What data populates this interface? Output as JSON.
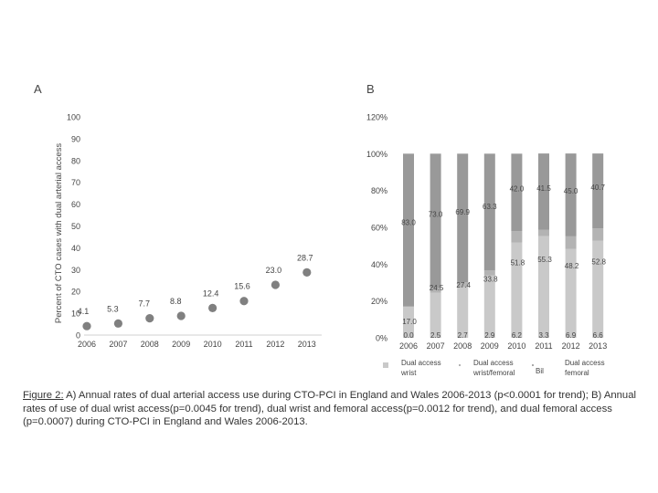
{
  "chart_data": [
    {
      "panel": "A",
      "type": "scatter",
      "title": "",
      "xlabel": "",
      "ylabel": "Percent of CTO cases with dual arterial access",
      "ylim": [
        0,
        100
      ],
      "yticks": [
        "0",
        "10",
        "20",
        "30",
        "40",
        "50",
        "60",
        "70",
        "80",
        "90",
        "100"
      ],
      "categories": [
        "2006",
        "2007",
        "2008",
        "2009",
        "2010",
        "2011",
        "2012",
        "2013"
      ],
      "values": [
        4.1,
        5.3,
        7.7,
        8.8,
        12.4,
        15.6,
        23.0,
        28.7
      ],
      "labels": [
        "4.1",
        "5.3",
        "7.7",
        "8.8",
        "12.4",
        "15.6",
        "23.0",
        "28.7"
      ],
      "marker_color": "#808080",
      "grid": false
    },
    {
      "panel": "B",
      "type": "bar",
      "stacked": true,
      "normalized": true,
      "title": "",
      "xlabel": "",
      "ylabel": "",
      "ylim": [
        0,
        120
      ],
      "yticks": [
        "0%",
        "20%",
        "40%",
        "60%",
        "80%",
        "100%",
        "120%"
      ],
      "categories": [
        "2006",
        "2007",
        "2008",
        "2009",
        "2010",
        "2011",
        "2012",
        "2013"
      ],
      "series": [
        {
          "name": "Dual access wrist",
          "color": "#c9c9c9",
          "values": [
            17.0,
            24.5,
            27.4,
            33.8,
            51.8,
            55.3,
            48.2,
            52.8
          ],
          "labels": [
            "17.0",
            "24.5",
            "27.4",
            "33.8",
            "51.8",
            "55.3",
            "48.2",
            "52.8"
          ]
        },
        {
          "name": "Dual access wrist/femoral",
          "color": "#b3b3b3",
          "values": [
            0.0,
            2.5,
            2.7,
            2.9,
            6.2,
            3.3,
            6.9,
            6.6
          ],
          "labels": [
            "0.0",
            "2.5",
            "2.7",
            "2.9",
            "6.2",
            "3.3",
            "6.9",
            "6.6"
          ]
        },
        {
          "name": "Dual access femoral",
          "color": "#999999",
          "values": [
            83.0,
            73.0,
            69.9,
            63.3,
            42.0,
            41.5,
            45.0,
            40.7
          ],
          "labels": [
            "83.0",
            "73.0",
            "69.9",
            "63.3",
            "42.0",
            "41.5",
            "45.0",
            "40.7"
          ]
        }
      ],
      "legend": {
        "placement": "bottom",
        "items": [
          {
            "line1": "Dual access",
            "line2": "wrist",
            "color": "#c9c9c9"
          },
          {
            "line1": "Dual access",
            "line2": "wrist/femoral",
            "color": "#b3b3b3"
          },
          {
            "line1": "Bil",
            "line2": "",
            "color": "#aaaaaa"
          },
          {
            "line1": "Dual access",
            "line2": "femoral",
            "color": "#999999"
          }
        ]
      }
    }
  ],
  "figure": {
    "panel_a_label": "A",
    "panel_b_label": "B",
    "caption_label": "Figure 2:",
    "caption_text": " A) Annual rates of dual arterial access use during CTO-PCI in England and Wales 2006-2013 (p<0.0001 for trend); B) Annual rates of use of dual wrist access(p=0.0045 for trend), dual wrist and femoral access(p=0.0012 for trend), and dual femoral access (p=0.0007) during CTO-PCI in England and Wales 2006-2013."
  }
}
